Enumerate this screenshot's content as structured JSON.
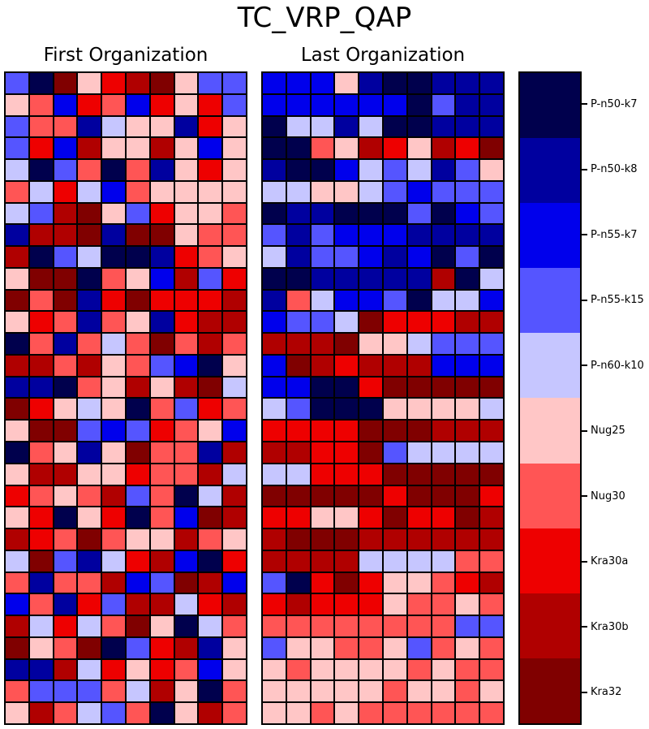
{
  "title": "TC_VRP_QAP",
  "panels": {
    "first": {
      "title": "First Organization"
    },
    "last": {
      "title": "Last Organization"
    }
  },
  "colorbar": {
    "labels": [
      "P-n50-k7",
      "P-n50-k8",
      "P-n55-k7",
      "P-n55-k15",
      "P-n60-k10",
      "Nug25",
      "Nug30",
      "Kra30a",
      "Kra30b",
      "Kra32"
    ],
    "colors": [
      "#00004d",
      "#00009f",
      "#0000ec",
      "#5555ff",
      "#c6c6ff",
      "#ffc6c6",
      "#ff5555",
      "#ee0000",
      "#b00000",
      "#800000"
    ]
  },
  "chart_data": {
    "type": "heatmap",
    "title": "TC_VRP_QAP",
    "colormap": "seismic, 10 discrete levels (1=dark navy ... 10=dark maroon)",
    "categories": [
      "P-n50-k7",
      "P-n50-k8",
      "P-n55-k7",
      "P-n55-k15",
      "P-n60-k10",
      "Nug25",
      "Nug30",
      "Kra30a",
      "Kra30b",
      "Kra32"
    ],
    "palette": [
      "#00004d",
      "#00009f",
      "#0000ec",
      "#5555ff",
      "#c6c6ff",
      "#ffc6c6",
      "#ff5555",
      "#ee0000",
      "#b00000",
      "#800000"
    ],
    "layout": {
      "rows": 30,
      "cols": 10,
      "legend_position": "right",
      "grid_line_color": "#000000"
    },
    "panels": [
      {
        "title": "First Organization",
        "grid": [
          [
            4,
            1,
            10,
            6,
            8,
            9,
            10,
            6,
            4,
            4
          ],
          [
            6,
            7,
            3,
            8,
            7,
            3,
            8,
            6,
            8,
            4
          ],
          [
            4,
            7,
            7,
            2,
            5,
            6,
            6,
            2,
            8,
            6
          ],
          [
            4,
            8,
            3,
            9,
            6,
            6,
            9,
            6,
            3,
            6
          ],
          [
            5,
            1,
            4,
            7,
            1,
            7,
            2,
            6,
            8,
            6
          ],
          [
            7,
            5,
            8,
            5,
            3,
            7,
            6,
            6,
            6,
            6
          ],
          [
            5,
            4,
            9,
            10,
            6,
            4,
            8,
            6,
            6,
            7
          ],
          [
            2,
            9,
            9,
            10,
            2,
            10,
            10,
            6,
            7,
            7
          ],
          [
            9,
            1,
            4,
            5,
            1,
            1,
            2,
            8,
            7,
            6
          ],
          [
            6,
            10,
            10,
            1,
            7,
            6,
            3,
            9,
            4,
            8
          ],
          [
            10,
            7,
            10,
            2,
            8,
            10,
            8,
            8,
            8,
            9
          ],
          [
            6,
            8,
            7,
            2,
            7,
            6,
            2,
            8,
            9,
            9
          ],
          [
            1,
            7,
            2,
            7,
            5,
            7,
            10,
            7,
            9,
            7
          ],
          [
            9,
            9,
            7,
            9,
            6,
            7,
            4,
            3,
            1,
            6
          ],
          [
            2,
            2,
            1,
            7,
            6,
            9,
            6,
            9,
            10,
            5
          ],
          [
            10,
            8,
            6,
            5,
            6,
            1,
            7,
            4,
            8,
            7
          ],
          [
            6,
            10,
            10,
            4,
            3,
            4,
            8,
            7,
            6,
            3
          ],
          [
            1,
            7,
            6,
            2,
            6,
            10,
            7,
            7,
            2,
            9
          ],
          [
            6,
            9,
            9,
            6,
            6,
            8,
            7,
            7,
            9,
            5
          ],
          [
            8,
            7,
            6,
            7,
            9,
            4,
            7,
            1,
            5,
            9
          ],
          [
            6,
            8,
            1,
            6,
            8,
            1,
            7,
            3,
            10,
            9
          ],
          [
            9,
            8,
            7,
            10,
            7,
            6,
            6,
            9,
            7,
            6
          ],
          [
            5,
            10,
            4,
            2,
            5,
            8,
            9,
            3,
            1,
            8
          ],
          [
            7,
            2,
            7,
            7,
            9,
            3,
            4,
            10,
            9,
            3
          ],
          [
            3,
            7,
            2,
            8,
            4,
            9,
            9,
            5,
            8,
            9
          ],
          [
            9,
            5,
            8,
            5,
            7,
            10,
            6,
            1,
            5,
            7
          ],
          [
            10,
            6,
            7,
            10,
            1,
            4,
            8,
            9,
            2,
            6
          ],
          [
            2,
            2,
            9,
            5,
            8,
            6,
            8,
            7,
            3,
            6
          ],
          [
            7,
            4,
            4,
            4,
            7,
            5,
            9,
            6,
            1,
            7
          ],
          [
            6,
            9,
            7,
            5,
            4,
            7,
            1,
            6,
            9,
            7
          ]
        ]
      },
      {
        "title": "Last Organization",
        "grid": [
          [
            3,
            3,
            3,
            6,
            2,
            1,
            1,
            2,
            2,
            2
          ],
          [
            3,
            3,
            3,
            3,
            3,
            3,
            1,
            4,
            2,
            2
          ],
          [
            1,
            5,
            5,
            2,
            5,
            1,
            1,
            2,
            2,
            2
          ],
          [
            1,
            1,
            7,
            6,
            9,
            8,
            6,
            9,
            8,
            10
          ],
          [
            2,
            1,
            1,
            3,
            5,
            4,
            5,
            2,
            4,
            6
          ],
          [
            5,
            5,
            6,
            6,
            5,
            4,
            3,
            4,
            4,
            4
          ],
          [
            1,
            2,
            2,
            1,
            1,
            1,
            4,
            1,
            3,
            4
          ],
          [
            4,
            2,
            4,
            3,
            3,
            3,
            2,
            2,
            2,
            2
          ],
          [
            5,
            2,
            4,
            4,
            3,
            2,
            3,
            1,
            4,
            1
          ],
          [
            1,
            1,
            2,
            2,
            2,
            2,
            2,
            9,
            1,
            5
          ],
          [
            2,
            7,
            5,
            3,
            3,
            4,
            1,
            5,
            5,
            3
          ],
          [
            3,
            4,
            4,
            5,
            10,
            8,
            8,
            8,
            9,
            9
          ],
          [
            9,
            9,
            9,
            10,
            6,
            6,
            5,
            4,
            4,
            4
          ],
          [
            3,
            10,
            9,
            8,
            9,
            9,
            9,
            3,
            3,
            3
          ],
          [
            3,
            3,
            1,
            1,
            8,
            10,
            10,
            10,
            10,
            10
          ],
          [
            5,
            4,
            1,
            1,
            1,
            6,
            6,
            6,
            6,
            5
          ],
          [
            8,
            8,
            8,
            8,
            10,
            10,
            10,
            9,
            9,
            9
          ],
          [
            9,
            9,
            8,
            8,
            10,
            4,
            5,
            5,
            5,
            5
          ],
          [
            5,
            5,
            8,
            8,
            8,
            10,
            10,
            10,
            10,
            10
          ],
          [
            10,
            10,
            10,
            10,
            10,
            8,
            10,
            10,
            10,
            8
          ],
          [
            8,
            8,
            6,
            6,
            8,
            10,
            8,
            8,
            10,
            9
          ],
          [
            9,
            10,
            10,
            10,
            9,
            9,
            9,
            9,
            9,
            9
          ],
          [
            9,
            9,
            9,
            9,
            5,
            5,
            5,
            5,
            7,
            7
          ],
          [
            4,
            1,
            8,
            10,
            8,
            6,
            6,
            7,
            8,
            9
          ],
          [
            8,
            9,
            8,
            8,
            8,
            6,
            7,
            7,
            6,
            7
          ],
          [
            7,
            7,
            7,
            7,
            7,
            7,
            7,
            7,
            4,
            4
          ],
          [
            4,
            6,
            6,
            7,
            7,
            6,
            4,
            7,
            6,
            7
          ],
          [
            6,
            7,
            6,
            6,
            6,
            6,
            7,
            6,
            7,
            7
          ],
          [
            6,
            6,
            6,
            6,
            6,
            7,
            6,
            6,
            7,
            6
          ],
          [
            6,
            6,
            7,
            6,
            7,
            7,
            7,
            7,
            7,
            7
          ]
        ]
      }
    ]
  }
}
